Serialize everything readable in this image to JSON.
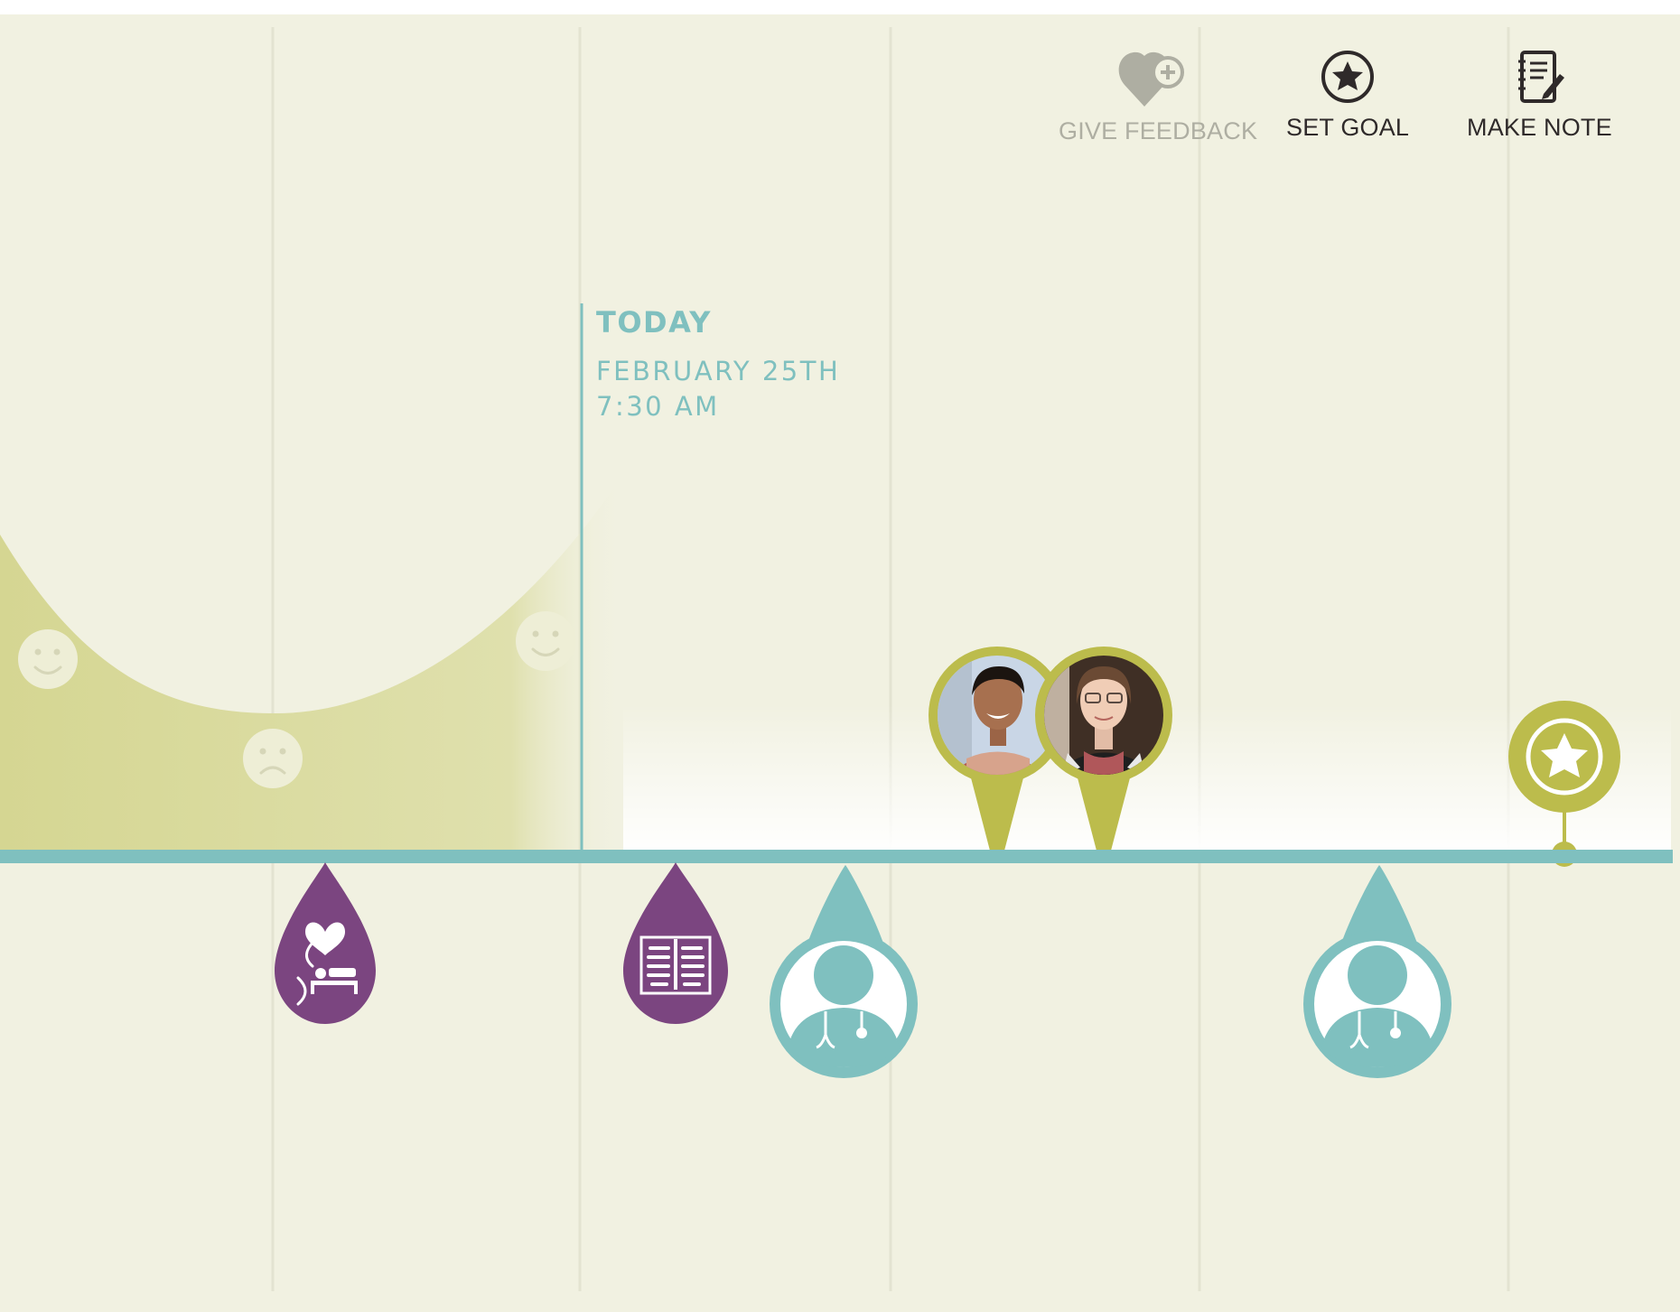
{
  "actions": {
    "give_feedback": {
      "label": "GIVE FEEDBACK",
      "icon": "heart-plus-icon",
      "color": "#aeaea2"
    },
    "set_goal": {
      "label": "SET GOAL",
      "icon": "star-circle-icon",
      "color": "#2f2a2a"
    },
    "make_note": {
      "label": "MAKE NOTE",
      "icon": "notebook-pencil-icon",
      "color": "#2f2a2a"
    }
  },
  "now": {
    "label": "TODAY",
    "date": "FEBRUARY 25TH",
    "time": "7:30 AM"
  },
  "colors": {
    "background": "#f1f1e1",
    "timeline": "#7fc0bf",
    "mood_fill": "#d9da9c",
    "care_team_pin": "#bcbc4c",
    "procedure_pin": "#7b4580",
    "doctor_pin": "#7fc0bf"
  },
  "mood_markers": [
    "smiley-face-icon",
    "frown-face-icon",
    "smiley-face-icon"
  ],
  "events": [
    {
      "kind": "procedure",
      "icon": "hospital-bed-heart-icon"
    },
    {
      "kind": "procedure",
      "icon": "xray-ribcage-icon"
    },
    {
      "kind": "appointment",
      "icon": "doctor-stethoscope-icon"
    },
    {
      "kind": "care-team",
      "icon": "person-photo-avatar"
    },
    {
      "kind": "care-team",
      "icon": "person-photo-avatar"
    },
    {
      "kind": "appointment",
      "icon": "doctor-stethoscope-icon"
    },
    {
      "kind": "goal",
      "icon": "star-circle-icon"
    }
  ]
}
